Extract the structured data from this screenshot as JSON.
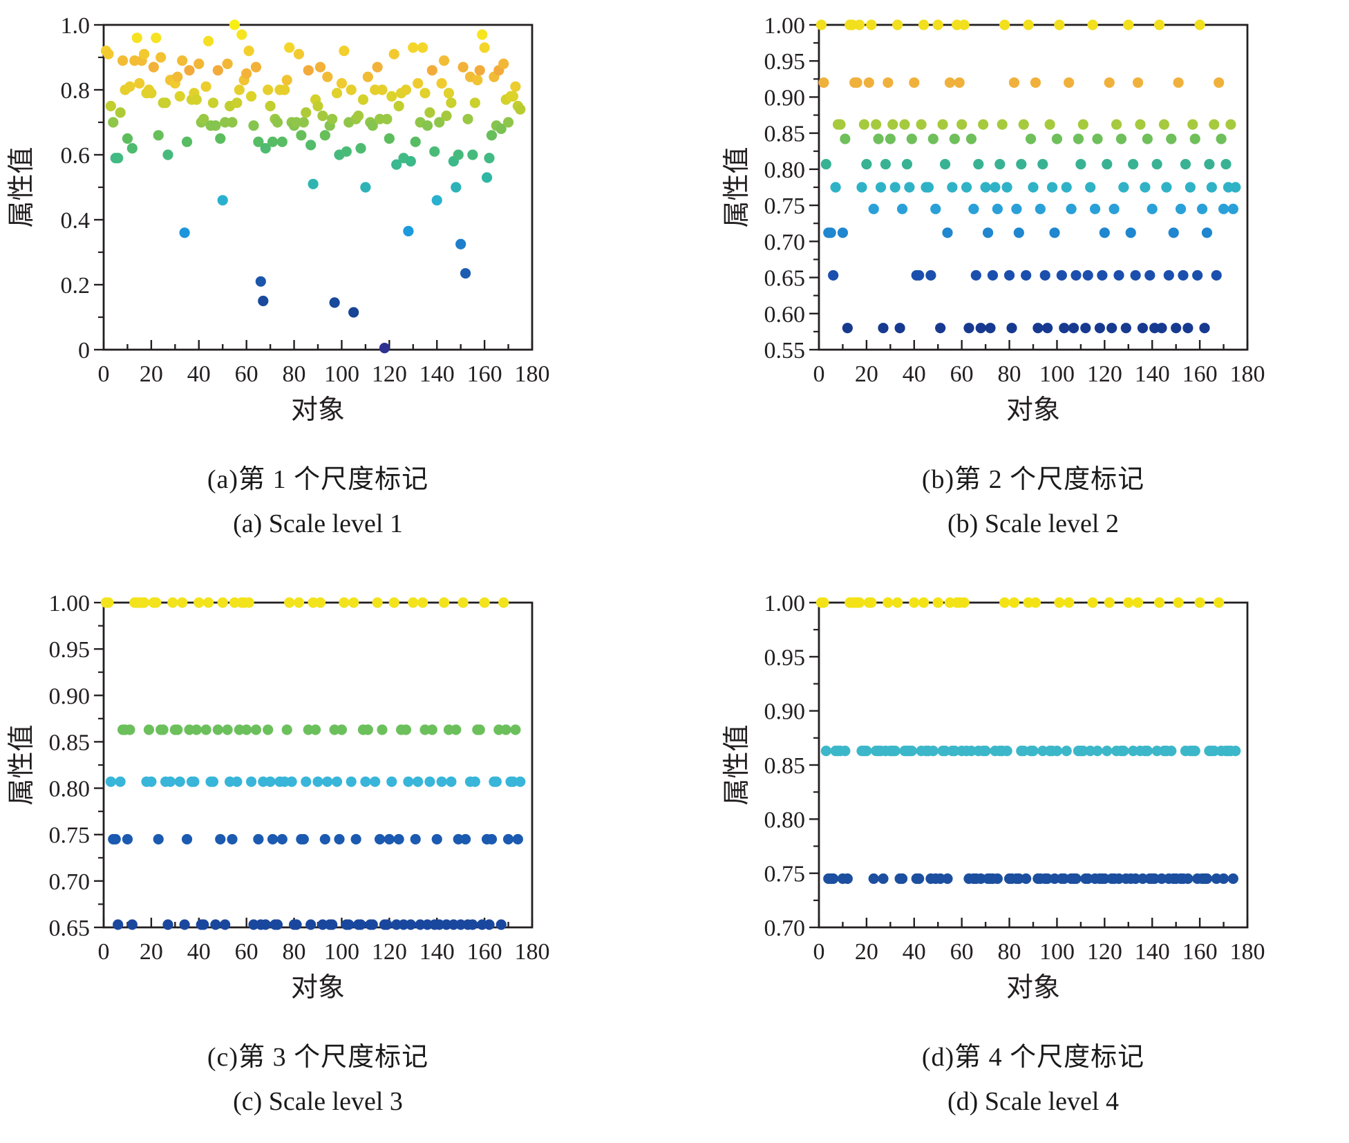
{
  "page": {
    "background": "#ffffff"
  },
  "axis_style": {
    "color": "#231f20"
  },
  "colormap_stops": [
    [
      0.0,
      "#2e3192"
    ],
    [
      0.1,
      "#16418f"
    ],
    [
      0.2,
      "#1b53a8"
    ],
    [
      0.3,
      "#1e6ec0"
    ],
    [
      0.37,
      "#1d9ce0"
    ],
    [
      0.45,
      "#29afd5"
    ],
    [
      0.52,
      "#2eb5ab"
    ],
    [
      0.58,
      "#3cb989"
    ],
    [
      0.65,
      "#5cbd5d"
    ],
    [
      0.7,
      "#8fc64a"
    ],
    [
      0.74,
      "#b8cc31"
    ],
    [
      0.78,
      "#dcd32a"
    ],
    [
      0.82,
      "#f0cb30"
    ],
    [
      0.86,
      "#f2ab3b"
    ],
    [
      0.9,
      "#f2c233"
    ],
    [
      0.94,
      "#f4dc28"
    ],
    [
      1.0,
      "#f8ee14"
    ]
  ],
  "chart_data": [
    {
      "id": "a",
      "type": "scatter",
      "caption_zh": "(a)第 1 个尺度标记",
      "caption_en": "(a) Scale level 1",
      "xlabel": "对象",
      "ylabel": "属性值",
      "xlim": [
        0,
        180
      ],
      "xticks": [
        0,
        20,
        40,
        60,
        80,
        100,
        120,
        140,
        160,
        180
      ],
      "x_minor_step": 10,
      "ylim": [
        0,
        1
      ],
      "yticks": [
        0,
        0.2,
        0.4,
        0.6,
        0.8,
        1
      ],
      "ytick_labels": [
        "0",
        "0.2",
        "0.4",
        "0.6",
        "0.8",
        "1.0"
      ],
      "color_mode": "colormap-by-value",
      "x": {
        "from": 1,
        "to": 175
      },
      "y": [
        0.92,
        0.91,
        0.75,
        0.7,
        0.59,
        0.59,
        0.73,
        0.89,
        0.8,
        0.65,
        0.81,
        0.62,
        0.89,
        0.96,
        0.82,
        0.89,
        0.91,
        0.79,
        0.8,
        0.79,
        0.87,
        0.96,
        0.66,
        0.9,
        0.76,
        0.76,
        0.6,
        0.83,
        0.83,
        0.82,
        0.84,
        0.78,
        0.89,
        0.36,
        0.64,
        0.86,
        0.77,
        0.79,
        0.77,
        0.88,
        0.7,
        0.71,
        0.81,
        0.95,
        0.69,
        0.76,
        0.69,
        0.86,
        0.65,
        0.46,
        0.7,
        0.88,
        0.75,
        0.7,
        1.0,
        0.76,
        0.8,
        0.97,
        0.83,
        0.85,
        0.92,
        0.78,
        0.69,
        0.87,
        0.64,
        0.21,
        0.15,
        0.62,
        0.8,
        0.75,
        0.64,
        0.71,
        0.7,
        0.8,
        0.64,
        0.8,
        0.83,
        0.93,
        0.7,
        0.69,
        0.7,
        0.91,
        0.66,
        0.7,
        0.73,
        0.86,
        0.63,
        0.51,
        0.77,
        0.75,
        0.87,
        0.72,
        0.66,
        0.84,
        0.69,
        0.71,
        0.145,
        0.79,
        0.6,
        0.82,
        0.92,
        0.61,
        0.7,
        0.8,
        0.115,
        0.71,
        0.72,
        0.62,
        0.77,
        0.5,
        0.84,
        0.7,
        0.69,
        0.8,
        0.87,
        0.71,
        0.8,
        0.005,
        0.71,
        0.65,
        0.78,
        0.91,
        0.57,
        0.75,
        0.79,
        0.59,
        0.8,
        0.365,
        0.58,
        0.93,
        0.64,
        0.82,
        0.7,
        0.93,
        0.79,
        0.69,
        0.73,
        0.86,
        0.61,
        0.46,
        0.7,
        0.82,
        0.89,
        0.72,
        0.79,
        0.76,
        0.58,
        0.5,
        0.6,
        0.325,
        0.87,
        0.235,
        0.71,
        0.84,
        0.6,
        0.76,
        0.83,
        0.86,
        0.97,
        0.93,
        0.53,
        0.59,
        0.66,
        0.84,
        0.69,
        0.86,
        0.68,
        0.88,
        0.77,
        0.7,
        0.78,
        0.78,
        0.81,
        0.75,
        0.74
      ]
    },
    {
      "id": "b",
      "type": "scatter",
      "caption_zh": "(b)第 2 个尺度标记",
      "caption_en": "(b) Scale level 2",
      "xlabel": "对象",
      "ylabel": "属性值",
      "xlim": [
        0,
        180
      ],
      "xticks": [
        0,
        20,
        40,
        60,
        80,
        100,
        120,
        140,
        160,
        180
      ],
      "x_minor_step": 10,
      "ylim": [
        0.55,
        1
      ],
      "yticks": [
        0.55,
        0.6,
        0.65,
        0.7,
        0.75,
        0.8,
        0.85,
        0.9,
        0.95,
        1
      ],
      "ytick_labels": [
        "0.55",
        "0.60",
        "0.65",
        "0.70",
        "0.75",
        "0.80",
        "0.85",
        "0.90",
        "0.95",
        "1.00"
      ],
      "levels": [
        {
          "value": 1.0,
          "color": "#f2df1d",
          "x": [
            1,
            13,
            14,
            17,
            22,
            33,
            44,
            50,
            58,
            61,
            78,
            88,
            101,
            115,
            130,
            143,
            160
          ]
        },
        {
          "value": 0.92,
          "color": "#f0b13c",
          "x": [
            2,
            15,
            16,
            21,
            29,
            40,
            55,
            59,
            82,
            91,
            105,
            122,
            134,
            151,
            168
          ]
        },
        {
          "value": 0.862,
          "color": "#a6ca3d",
          "x": [
            8,
            9,
            19,
            24,
            31,
            36,
            43,
            52,
            60,
            69,
            77,
            86,
            97,
            111,
            125,
            135,
            145,
            157,
            166,
            173
          ]
        },
        {
          "value": 0.842,
          "color": "#6fbf5a",
          "x": [
            11,
            25,
            30,
            39,
            48,
            57,
            64,
            89,
            100,
            109,
            117,
            127,
            138,
            148,
            158,
            169
          ]
        },
        {
          "value": 0.807,
          "color": "#38b293",
          "x": [
            3,
            20,
            28,
            37,
            53,
            67,
            76,
            85,
            94,
            110,
            121,
            132,
            142,
            154,
            164,
            171
          ]
        },
        {
          "value": 0.775,
          "color": "#2fb2c6",
          "x": [
            7,
            18,
            26,
            32,
            38,
            45,
            46,
            56,
            62,
            70,
            74,
            79,
            90,
            98,
            104,
            114,
            128,
            137,
            146,
            156,
            165,
            172,
            175
          ]
        },
        {
          "value": 0.745,
          "color": "#2aa0d8",
          "x": [
            23,
            35,
            49,
            65,
            75,
            83,
            93,
            106,
            116,
            124,
            140,
            152,
            161,
            170,
            174
          ]
        },
        {
          "value": 0.712,
          "color": "#1f86cf",
          "x": [
            4,
            5,
            10,
            54,
            71,
            84,
            99,
            120,
            131,
            149,
            163
          ]
        },
        {
          "value": 0.653,
          "color": "#1b4fae",
          "x": [
            6,
            41,
            42,
            47,
            66,
            73,
            80,
            87,
            95,
            102,
            108,
            113,
            119,
            126,
            133,
            139,
            147,
            153,
            159,
            167
          ]
        },
        {
          "value": 0.58,
          "color": "#173a90",
          "x": [
            12,
            27,
            34,
            51,
            63,
            68,
            72,
            81,
            92,
            96,
            103,
            107,
            112,
            118,
            123,
            129,
            136,
            141,
            144,
            150,
            155,
            162
          ]
        }
      ]
    },
    {
      "id": "c",
      "type": "scatter",
      "caption_zh": "(c)第 3 个尺度标记",
      "caption_en": "(c) Scale level 3",
      "xlabel": "对象",
      "ylabel": "属性值",
      "xlim": [
        0,
        180
      ],
      "xticks": [
        0,
        20,
        40,
        60,
        80,
        100,
        120,
        140,
        160,
        180
      ],
      "x_minor_step": 10,
      "ylim": [
        0.65,
        1
      ],
      "yticks": [
        0.65,
        0.7,
        0.75,
        0.8,
        0.85,
        0.9,
        0.95,
        1
      ],
      "ytick_labels": [
        "0.65",
        "0.70",
        "0.75",
        "0.80",
        "0.85",
        "0.90",
        "0.95",
        "1.00"
      ],
      "levels": [
        {
          "value": 1.0,
          "color": "#f2e31c",
          "x": [
            1,
            2,
            13,
            14,
            15,
            16,
            17,
            21,
            22,
            29,
            33,
            40,
            44,
            50,
            55,
            58,
            59,
            61,
            78,
            82,
            88,
            91,
            101,
            105,
            115,
            122,
            130,
            134,
            143,
            151,
            160,
            168
          ]
        },
        {
          "value": 0.863,
          "color": "#6cc05c",
          "x": [
            8,
            9,
            11,
            19,
            24,
            25,
            30,
            31,
            36,
            39,
            43,
            48,
            52,
            57,
            60,
            64,
            69,
            77,
            86,
            89,
            97,
            100,
            109,
            111,
            117,
            125,
            127,
            135,
            138,
            145,
            148,
            157,
            158,
            166,
            169,
            173
          ]
        },
        {
          "value": 0.807,
          "color": "#38b5d9",
          "x": [
            3,
            7,
            18,
            20,
            26,
            28,
            32,
            37,
            38,
            45,
            46,
            53,
            56,
            62,
            67,
            70,
            74,
            76,
            79,
            85,
            90,
            94,
            98,
            104,
            110,
            114,
            121,
            128,
            132,
            137,
            142,
            146,
            154,
            156,
            164,
            165,
            171,
            172,
            175
          ]
        },
        {
          "value": 0.745,
          "color": "#1b5ab0",
          "x": [
            4,
            5,
            10,
            23,
            35,
            49,
            54,
            65,
            71,
            75,
            83,
            84,
            93,
            99,
            106,
            116,
            120,
            124,
            131,
            140,
            149,
            152,
            161,
            163,
            170,
            174
          ]
        },
        {
          "value": 0.653,
          "color": "#1a479e",
          "x": [
            6,
            12,
            27,
            34,
            41,
            42,
            47,
            51,
            63,
            66,
            68,
            72,
            73,
            80,
            81,
            87,
            92,
            95,
            96,
            102,
            103,
            107,
            108,
            112,
            113,
            118,
            119,
            123,
            126,
            129,
            133,
            136,
            139,
            141,
            144,
            147,
            150,
            153,
            155,
            159,
            162,
            167
          ]
        }
      ]
    },
    {
      "id": "d",
      "type": "scatter",
      "caption_zh": "(d)第 4 个尺度标记",
      "caption_en": "(d) Scale level 4",
      "xlabel": "对象",
      "ylabel": "属性值",
      "xlim": [
        0,
        180
      ],
      "xticks": [
        0,
        20,
        40,
        60,
        80,
        100,
        120,
        140,
        160,
        180
      ],
      "x_minor_step": 10,
      "ylim": [
        0.7,
        1
      ],
      "yticks": [
        0.7,
        0.75,
        0.8,
        0.85,
        0.9,
        0.95,
        1
      ],
      "ytick_labels": [
        "0.70",
        "0.75",
        "0.80",
        "0.85",
        "0.90",
        "0.95",
        "1.00"
      ],
      "levels": [
        {
          "value": 1.0,
          "color": "#f3e316",
          "x": [
            1,
            2,
            13,
            14,
            15,
            16,
            17,
            21,
            22,
            29,
            33,
            40,
            44,
            50,
            55,
            58,
            59,
            61,
            78,
            82,
            88,
            91,
            101,
            105,
            115,
            122,
            130,
            134,
            143,
            151,
            160,
            168
          ]
        },
        {
          "value": 0.863,
          "color": "#3cb7c9",
          "x": [
            3,
            7,
            8,
            9,
            11,
            18,
            19,
            20,
            24,
            25,
            26,
            28,
            30,
            31,
            32,
            36,
            37,
            38,
            39,
            43,
            45,
            46,
            48,
            52,
            53,
            56,
            57,
            60,
            62,
            64,
            67,
            69,
            70,
            74,
            76,
            77,
            79,
            85,
            86,
            89,
            90,
            94,
            97,
            98,
            100,
            104,
            109,
            110,
            111,
            114,
            117,
            121,
            125,
            127,
            128,
            132,
            135,
            137,
            138,
            142,
            145,
            146,
            148,
            154,
            156,
            157,
            158,
            164,
            165,
            166,
            169,
            171,
            172,
            173,
            175
          ]
        },
        {
          "value": 0.745,
          "color": "#1c4f9f",
          "x": [
            4,
            5,
            6,
            10,
            12,
            23,
            27,
            34,
            35,
            41,
            42,
            47,
            49,
            51,
            54,
            63,
            65,
            66,
            68,
            71,
            72,
            73,
            75,
            80,
            81,
            83,
            84,
            87,
            92,
            93,
            95,
            96,
            99,
            102,
            103,
            106,
            107,
            108,
            112,
            113,
            116,
            118,
            119,
            120,
            123,
            124,
            126,
            129,
            131,
            133,
            136,
            139,
            140,
            141,
            144,
            147,
            149,
            150,
            152,
            153,
            155,
            159,
            161,
            162,
            163,
            167,
            170,
            174
          ]
        }
      ]
    }
  ]
}
